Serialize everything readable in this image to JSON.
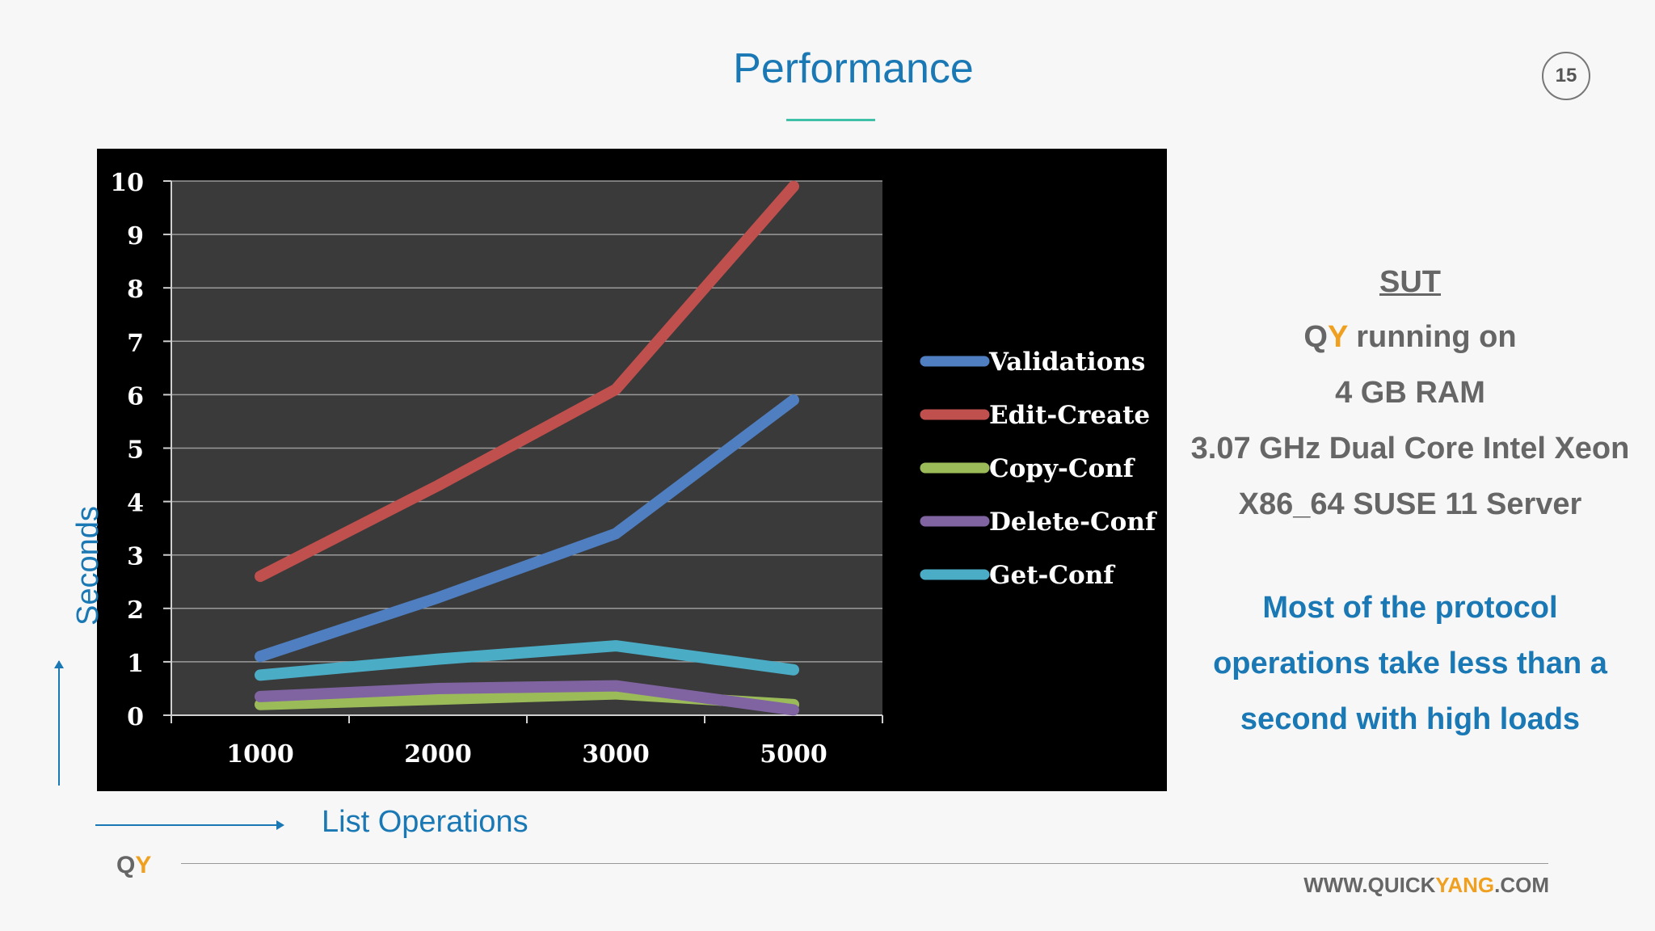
{
  "slide": {
    "title": "Performance",
    "page_number": "15"
  },
  "axes": {
    "y_title": "Seconds",
    "x_title": "List Operations"
  },
  "chart_data": {
    "type": "line",
    "categories": [
      "1000",
      "2000",
      "3000",
      "5000"
    ],
    "yticks": [
      "0",
      "1",
      "2",
      "3",
      "4",
      "5",
      "6",
      "7",
      "8",
      "9",
      "10"
    ],
    "ylim": [
      0,
      10
    ],
    "grid": true,
    "legend_position": "right",
    "series": [
      {
        "name": "Validations",
        "values": [
          1.1,
          2.2,
          3.4,
          5.9
        ],
        "color": "#4f7fc1"
      },
      {
        "name": "Edit-Create",
        "values": [
          2.6,
          4.3,
          6.1,
          9.9
        ],
        "color": "#c0504d"
      },
      {
        "name": "Copy-Conf",
        "values": [
          0.2,
          0.3,
          0.4,
          0.2
        ],
        "color": "#9bbb59"
      },
      {
        "name": "Delete-Conf",
        "values": [
          0.35,
          0.5,
          0.55,
          0.1
        ],
        "color": "#8064a2"
      },
      {
        "name": "Get-Conf",
        "values": [
          0.75,
          1.05,
          1.3,
          0.85
        ],
        "color": "#4bacc6"
      }
    ]
  },
  "sut": {
    "heading": "SUT",
    "brand_q": "Q",
    "brand_y": "Y",
    "running": " running on",
    "ram": "4 GB RAM",
    "cpu": "3.07 GHz Dual Core Intel Xeon",
    "os": "X86_64 SUSE 11 Server"
  },
  "note": {
    "line1": "Most of the protocol",
    "line2": "operations take less than a",
    "line3": "second with high loads"
  },
  "footer": {
    "logo_q": "Q",
    "logo_y": "Y",
    "url_a": "WWW.QUICK",
    "url_b": "YANG",
    "url_c": ".COM"
  },
  "colors": {
    "title": "#1a78b4",
    "accent": "#f0a020",
    "underline": "#3ec1a7",
    "chart_background": "#000000",
    "plot_area": "#3a3a3a"
  }
}
